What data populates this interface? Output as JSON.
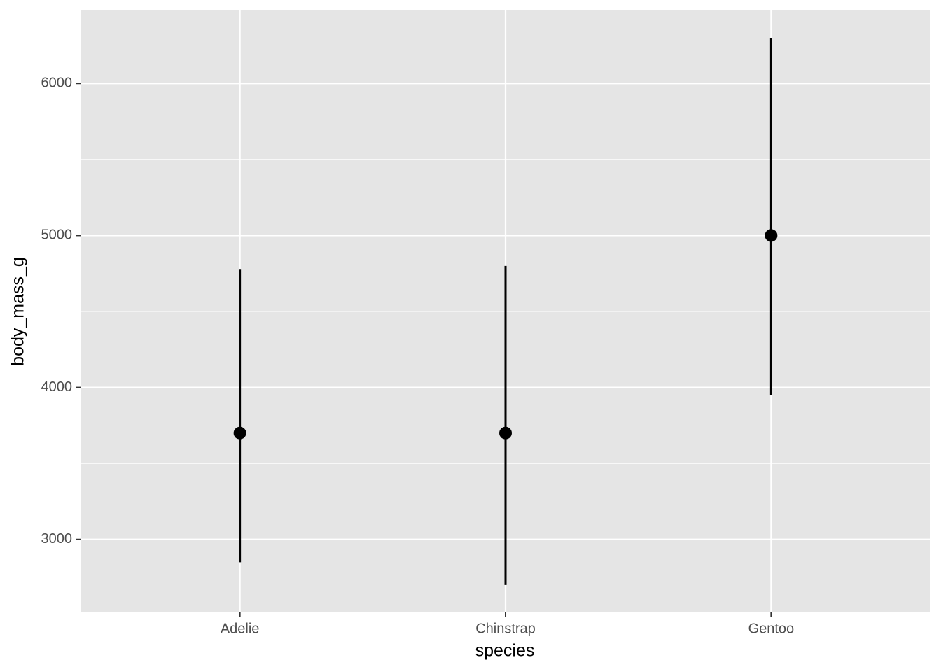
{
  "chart_data": {
    "type": "pointrange",
    "x_label": "species",
    "y_label": "body_mass_g",
    "categories": [
      "Adelie",
      "Chinstrap",
      "Gentoo"
    ],
    "values": [
      3700,
      3700,
      5000
    ],
    "ymin": [
      2850,
      2700,
      3950
    ],
    "ymax": [
      4775,
      4800,
      6300
    ],
    "color": "#000000",
    "ylim": [
      2520,
      6480
    ],
    "yticks": [
      3000,
      4000,
      5000,
      6000
    ],
    "minor_yticks": [
      3500,
      4500,
      5500
    ],
    "grid": true
  }
}
